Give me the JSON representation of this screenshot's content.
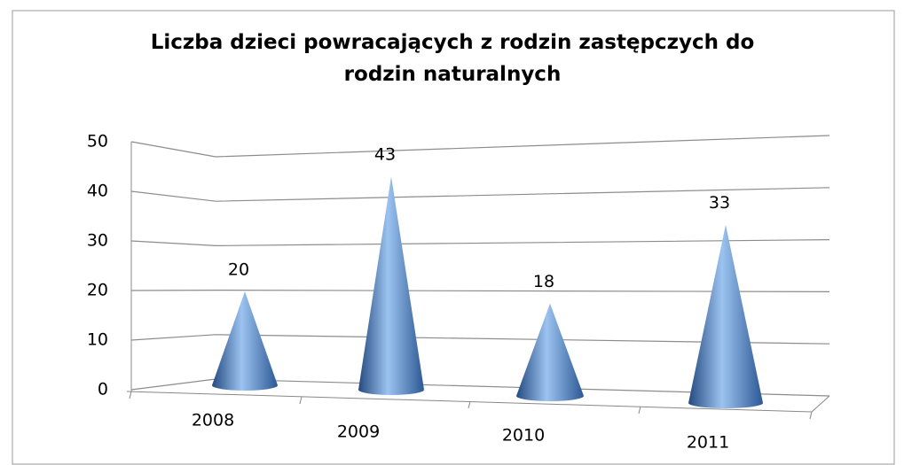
{
  "chart_data": {
    "type": "cone",
    "title": "Liczba dzieci powracających z rodzin zastępczych do rodzin naturalnych",
    "categories": [
      "2008",
      "2009",
      "2010",
      "2011"
    ],
    "values": [
      20,
      43,
      18,
      33
    ],
    "color": "#4f81bd",
    "ylim": [
      0,
      50
    ],
    "yticks": [
      0,
      10,
      20,
      30,
      40,
      50
    ],
    "grid": true
  }
}
